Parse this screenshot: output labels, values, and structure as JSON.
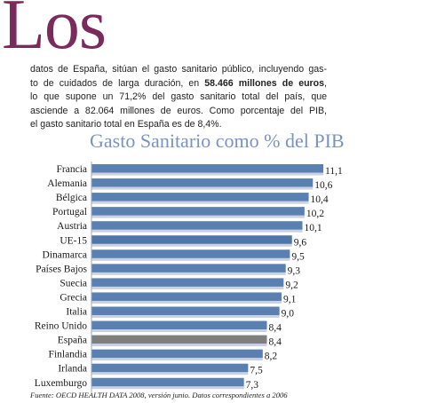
{
  "article": {
    "drop_word": "Los",
    "lines": [
      "datos de España, sitúan el gasto sanitario público, incluyendo gas-",
      "to de cuidados de larga duración, en ",
      "58.466 millones de euros",
      ",",
      "lo que supone un 71,2% del gasto sanitario total del país, que",
      "asciende a 82.064 millones de euros. Como porcentaje del PIB,",
      "el gasto sanitario total en España es de 8,4%."
    ]
  },
  "chart_data": {
    "type": "bar",
    "orientation": "horizontal",
    "title": "Gasto Sanitario como % del PIB",
    "categories": [
      "Francia",
      "Alemania",
      "Bélgica",
      "Portugal",
      "Austria",
      "UE-15",
      "Dinamarca",
      "Países Bajos",
      "Suecia",
      "Grecia",
      "Italia",
      "Reino Unido",
      "España",
      "Finlandia",
      "Irlanda",
      "Luxemburgo"
    ],
    "values": [
      11.1,
      10.6,
      10.4,
      10.2,
      10.1,
      9.6,
      9.5,
      9.3,
      9.2,
      9.1,
      9.0,
      8.4,
      8.4,
      8.2,
      7.5,
      7.3
    ],
    "value_labels": [
      "11,1",
      "10,6",
      "10,4",
      "10,2",
      "10,1",
      "9,6",
      "9,5",
      "9,3",
      "9,2",
      "9,1",
      "9,0",
      "8,4",
      "8,4",
      "8,2",
      "7,5",
      "7,3"
    ],
    "xlim": [
      0,
      11.1
    ],
    "grid": false,
    "colors": {
      "bar_default": "#5a7fb1",
      "bar_ue15": "#4f74a8",
      "bar_spain": "#7f7f7f",
      "bar_shadow": "#c9d2e3",
      "title": "#7b93bf",
      "dropcap": "#7b2a5c"
    },
    "highlighted": [
      "UE-15",
      "España"
    ],
    "source": "Fuente: OECD HEALTH DATA 2008, versión junio. Datos correspondientes a 2006"
  }
}
